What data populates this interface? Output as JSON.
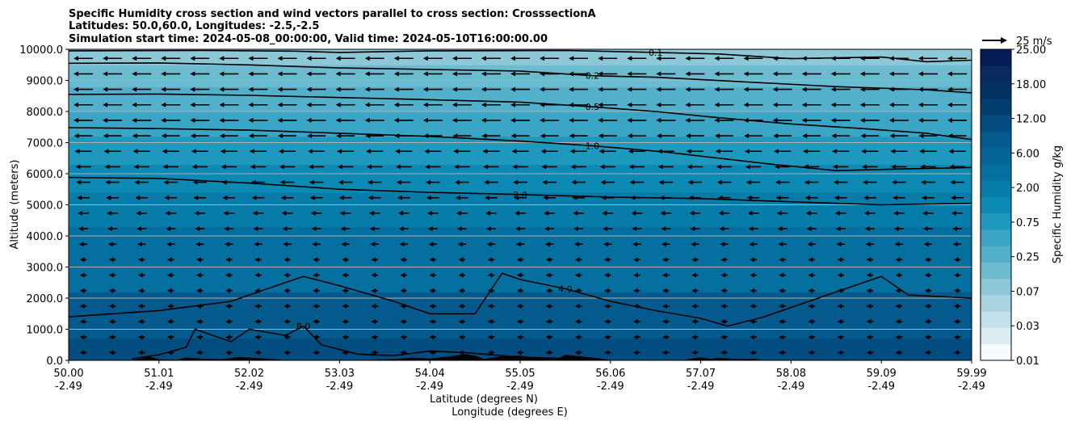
{
  "chart_data": {
    "type": "heatmap",
    "title_lines": [
      "Specific Humidity cross section and wind vectors parallel to cross section: CrosssectionA",
      "Latitudes: 50.0,60.0, Longitudes: -2.5,-2.5",
      "Simulation start time: 2024-05-08_00:00:00, Valid time: 2024-05-10T16:00:00.00"
    ],
    "ylabel": "Altitude (meters)",
    "xlabel_lat": "Latitude (degrees N)",
    "xlabel_lon": "Longitude (degrees E)",
    "ylim": [
      0,
      10000
    ],
    "y_ticks": [
      {
        "value": 0,
        "label": "0.0"
      },
      {
        "value": 1000,
        "label": "1000.0"
      },
      {
        "value": 2000,
        "label": "2000.0"
      },
      {
        "value": 3000,
        "label": "3000.0"
      },
      {
        "value": 4000,
        "label": "4000.0"
      },
      {
        "value": 5000,
        "label": "5000.0"
      },
      {
        "value": 6000,
        "label": "6000.0"
      },
      {
        "value": 7000,
        "label": "7000.0"
      },
      {
        "value": 8000,
        "label": "8000.0"
      },
      {
        "value": 9000,
        "label": "9000.0"
      },
      {
        "value": 10000,
        "label": "10000.0"
      }
    ],
    "x_ticks": [
      {
        "frac": 0.0,
        "lat": "50.00",
        "lon": "-2.49"
      },
      {
        "frac": 0.1,
        "lat": "51.01",
        "lon": "-2.49"
      },
      {
        "frac": 0.2,
        "lat": "52.02",
        "lon": "-2.49"
      },
      {
        "frac": 0.3,
        "lat": "53.03",
        "lon": "-2.49"
      },
      {
        "frac": 0.4,
        "lat": "54.04",
        "lon": "-2.49"
      },
      {
        "frac": 0.5,
        "lat": "55.05",
        "lon": "-2.49"
      },
      {
        "frac": 0.6,
        "lat": "56.06",
        "lon": "-2.49"
      },
      {
        "frac": 0.7,
        "lat": "57.07",
        "lon": "-2.49"
      },
      {
        "frac": 0.8,
        "lat": "58.08",
        "lon": "-2.49"
      },
      {
        "frac": 0.9,
        "lat": "59.09",
        "lon": "-2.49"
      },
      {
        "frac": 1.0,
        "lat": "59.99",
        "lon": "-2.49"
      }
    ],
    "colorbar": {
      "label": "Specific Humidity g/kg",
      "levels": [
        "0.01",
        "0.03",
        "0.07",
        "0.25",
        "0.75",
        "2.00",
        "6.00",
        "12.00",
        "18.00",
        "25.00"
      ],
      "palette": [
        "#f7fbfd",
        "#dcedf2",
        "#c2e1ea",
        "#a8d5e1",
        "#8cc8d8",
        "#6cbbcf",
        "#52b0ca",
        "#3aa5c4",
        "#1f98bd",
        "#0d8ab4",
        "#077ca9",
        "#056f9f",
        "#046496",
        "#045a8d",
        "#034c7f",
        "#023f70",
        "#013262",
        "#082a5e",
        "#081d58"
      ]
    },
    "wind_reference": {
      "label": "25 m/s",
      "speed": 25
    },
    "contours": [
      {
        "label": "0.1",
        "points": [
          [
            0.0,
            9950
          ],
          [
            0.15,
            9960
          ],
          [
            0.25,
            9940
          ],
          [
            0.3,
            9900
          ],
          [
            0.4,
            9950
          ],
          [
            0.55,
            9960
          ],
          [
            0.65,
            9900
          ],
          [
            0.72,
            9850
          ],
          [
            0.8,
            9700
          ],
          [
            0.9,
            9750
          ],
          [
            0.95,
            9600
          ],
          [
            1.0,
            9650
          ]
        ]
      },
      {
        "label": "0.2",
        "points": [
          [
            0.0,
            9550
          ],
          [
            0.1,
            9560
          ],
          [
            0.2,
            9500
          ],
          [
            0.3,
            9400
          ],
          [
            0.4,
            9350
          ],
          [
            0.5,
            9300
          ],
          [
            0.58,
            9150
          ],
          [
            0.65,
            9100
          ],
          [
            0.75,
            8950
          ],
          [
            0.85,
            8800
          ],
          [
            0.95,
            8700
          ],
          [
            1.0,
            8600
          ]
        ]
      },
      {
        "label": "0.5",
        "points": [
          [
            0.0,
            8550
          ],
          [
            0.1,
            8560
          ],
          [
            0.2,
            8520
          ],
          [
            0.3,
            8450
          ],
          [
            0.4,
            8380
          ],
          [
            0.5,
            8300
          ],
          [
            0.58,
            8150
          ],
          [
            0.65,
            8000
          ],
          [
            0.72,
            7800
          ],
          [
            0.8,
            7600
          ],
          [
            0.88,
            7450
          ],
          [
            0.95,
            7300
          ],
          [
            1.0,
            7100
          ]
        ]
      },
      {
        "label": "1.0",
        "points": [
          [
            0.0,
            7480
          ],
          [
            0.1,
            7450
          ],
          [
            0.2,
            7400
          ],
          [
            0.3,
            7300
          ],
          [
            0.4,
            7200
          ],
          [
            0.5,
            7050
          ],
          [
            0.58,
            6900
          ],
          [
            0.66,
            6700
          ],
          [
            0.72,
            6500
          ],
          [
            0.78,
            6300
          ],
          [
            0.85,
            6100
          ],
          [
            0.92,
            6150
          ],
          [
            1.0,
            6200
          ]
        ]
      },
      {
        "label": "2.0",
        "points": [
          [
            0.0,
            5880
          ],
          [
            0.1,
            5850
          ],
          [
            0.2,
            5700
          ],
          [
            0.3,
            5500
          ],
          [
            0.4,
            5400
          ],
          [
            0.5,
            5330
          ],
          [
            0.6,
            5250
          ],
          [
            0.7,
            5200
          ],
          [
            0.8,
            5100
          ],
          [
            0.9,
            5000
          ],
          [
            1.0,
            5050
          ]
        ]
      },
      {
        "label": "4.0",
        "points": [
          [
            0.0,
            1400
          ],
          [
            0.1,
            1600
          ],
          [
            0.18,
            1900
          ],
          [
            0.22,
            2300
          ],
          [
            0.26,
            2700
          ],
          [
            0.3,
            2400
          ],
          [
            0.36,
            1900
          ],
          [
            0.4,
            1500
          ],
          [
            0.45,
            1500
          ],
          [
            0.48,
            2800
          ],
          [
            0.5,
            2600
          ],
          [
            0.55,
            2300
          ],
          [
            0.6,
            1900
          ],
          [
            0.65,
            1600
          ],
          [
            0.7,
            1350
          ],
          [
            0.73,
            1100
          ],
          [
            0.77,
            1400
          ],
          [
            0.81,
            1800
          ],
          [
            0.85,
            2200
          ],
          [
            0.9,
            2700
          ],
          [
            0.93,
            2100
          ],
          [
            1.0,
            2000
          ]
        ]
      },
      {
        "label": "8.0",
        "points": [
          [
            0.07,
            50
          ],
          [
            0.1,
            180
          ],
          [
            0.13,
            420
          ],
          [
            0.14,
            1000
          ],
          [
            0.18,
            600
          ],
          [
            0.2,
            1000
          ],
          [
            0.24,
            800
          ],
          [
            0.26,
            1100
          ],
          [
            0.28,
            500
          ],
          [
            0.32,
            200
          ],
          [
            0.36,
            150
          ],
          [
            0.4,
            300
          ],
          [
            0.44,
            250
          ],
          [
            0.5,
            100
          ],
          [
            0.55,
            60
          ]
        ]
      }
    ],
    "terrain": [
      [
        0.0,
        0
      ],
      [
        0.07,
        10
      ],
      [
        0.08,
        60
      ],
      [
        0.09,
        120
      ],
      [
        0.1,
        30
      ],
      [
        0.12,
        20
      ],
      [
        0.13,
        90
      ],
      [
        0.15,
        50
      ],
      [
        0.17,
        40
      ],
      [
        0.19,
        110
      ],
      [
        0.21,
        70
      ],
      [
        0.23,
        30
      ],
      [
        0.24,
        0
      ],
      [
        0.3,
        0
      ],
      [
        0.36,
        40
      ],
      [
        0.38,
        90
      ],
      [
        0.4,
        60
      ],
      [
        0.42,
        120
      ],
      [
        0.44,
        200
      ],
      [
        0.45,
        150
      ],
      [
        0.46,
        50
      ],
      [
        0.48,
        130
      ],
      [
        0.5,
        150
      ],
      [
        0.52,
        70
      ],
      [
        0.54,
        40
      ],
      [
        0.55,
        180
      ],
      [
        0.57,
        120
      ],
      [
        0.59,
        60
      ],
      [
        0.6,
        0
      ],
      [
        0.68,
        0
      ],
      [
        0.69,
        60
      ],
      [
        0.7,
        100
      ],
      [
        0.71,
        50
      ],
      [
        0.72,
        80
      ],
      [
        0.74,
        40
      ],
      [
        0.76,
        50
      ],
      [
        0.77,
        0
      ],
      [
        1.0,
        0
      ]
    ]
  }
}
